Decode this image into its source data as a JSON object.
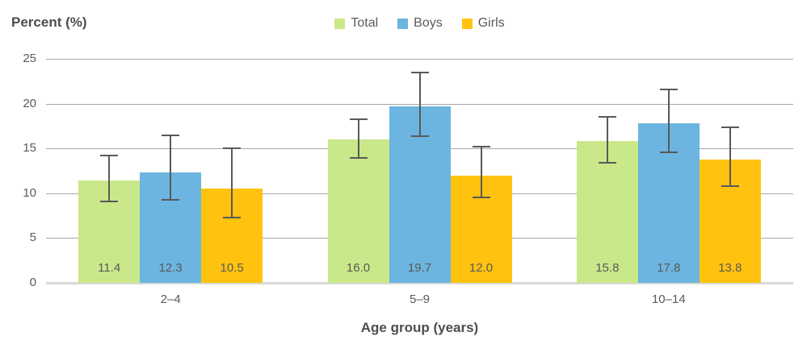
{
  "chart": {
    "title": "Percent (%)",
    "xlabel": "Age group (years)"
  },
  "colors": {
    "total": "#c9e88a",
    "boys": "#6cb5e0",
    "girls": "#ffc30f",
    "gridline": "#a6a6a6",
    "baseline": "#d9d9d9",
    "error_bar": "#595959",
    "text": "#595959",
    "title_text": "#4d4d4d"
  },
  "chart_data": {
    "type": "bar",
    "title": "Percent (%)",
    "xlabel": "Age group (years)",
    "ylabel": "",
    "ylim": [
      0,
      25
    ],
    "yticks": [
      0,
      5,
      10,
      15,
      20,
      25
    ],
    "grid": true,
    "legend_position": "top-center",
    "error_bars": true,
    "value_label_position": "inside-base",
    "categories": [
      "2–4",
      "5–9",
      "10–14"
    ],
    "series": [
      {
        "name": "Total",
        "color": "#c9e88a",
        "values": [
          11.4,
          16.0,
          15.8
        ],
        "error_low": [
          9.1,
          13.9,
          13.4
        ],
        "error_high": [
          14.2,
          18.3,
          18.5
        ]
      },
      {
        "name": "Boys",
        "color": "#6cb5e0",
        "values": [
          12.3,
          19.7,
          17.8
        ],
        "error_low": [
          9.3,
          16.4,
          14.6
        ],
        "error_high": [
          16.5,
          23.5,
          21.6
        ]
      },
      {
        "name": "Girls",
        "color": "#ffc30f",
        "values": [
          10.5,
          12.0,
          13.8
        ],
        "error_low": [
          7.3,
          9.5,
          10.8
        ],
        "error_high": [
          15.0,
          15.2,
          17.4
        ]
      }
    ]
  }
}
